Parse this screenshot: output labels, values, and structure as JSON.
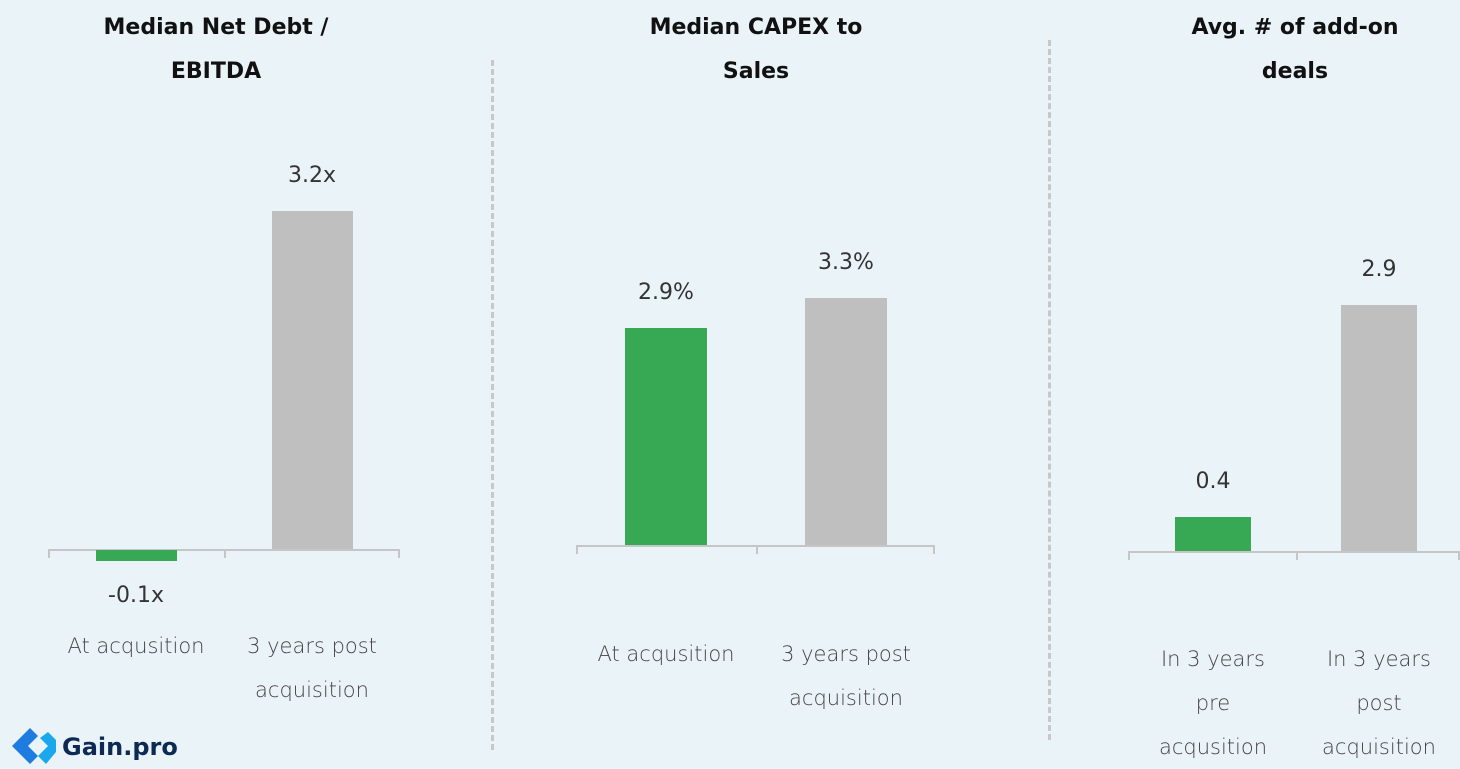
{
  "chart_data": [
    {
      "type": "bar",
      "title": "Median Net Debt / EBITDA",
      "categories": [
        "At acqusition",
        "3 years post acquisition"
      ],
      "values": [
        -0.1,
        3.2
      ],
      "value_labels": [
        "-0.1x",
        "3.2x"
      ],
      "colors": [
        "#37a854",
        "#bfbfbf"
      ]
    },
    {
      "type": "bar",
      "title": "Median CAPEX to Sales",
      "categories": [
        "At acqusition",
        "3 years post acquisition"
      ],
      "values": [
        2.9,
        3.3
      ],
      "value_labels": [
        "2.9%",
        "3.3%"
      ],
      "colors": [
        "#37a854",
        "#bfbfbf"
      ]
    },
    {
      "type": "bar",
      "title": "Avg. # of add-on deals",
      "categories": [
        "In 3 years pre acqusition",
        "In 3 years post acquisition"
      ],
      "values": [
        0.4,
        2.9
      ],
      "colors": [
        "#37a854",
        "#bfbfbf"
      ]
    }
  ],
  "logo": {
    "text": "Gain.pro"
  }
}
